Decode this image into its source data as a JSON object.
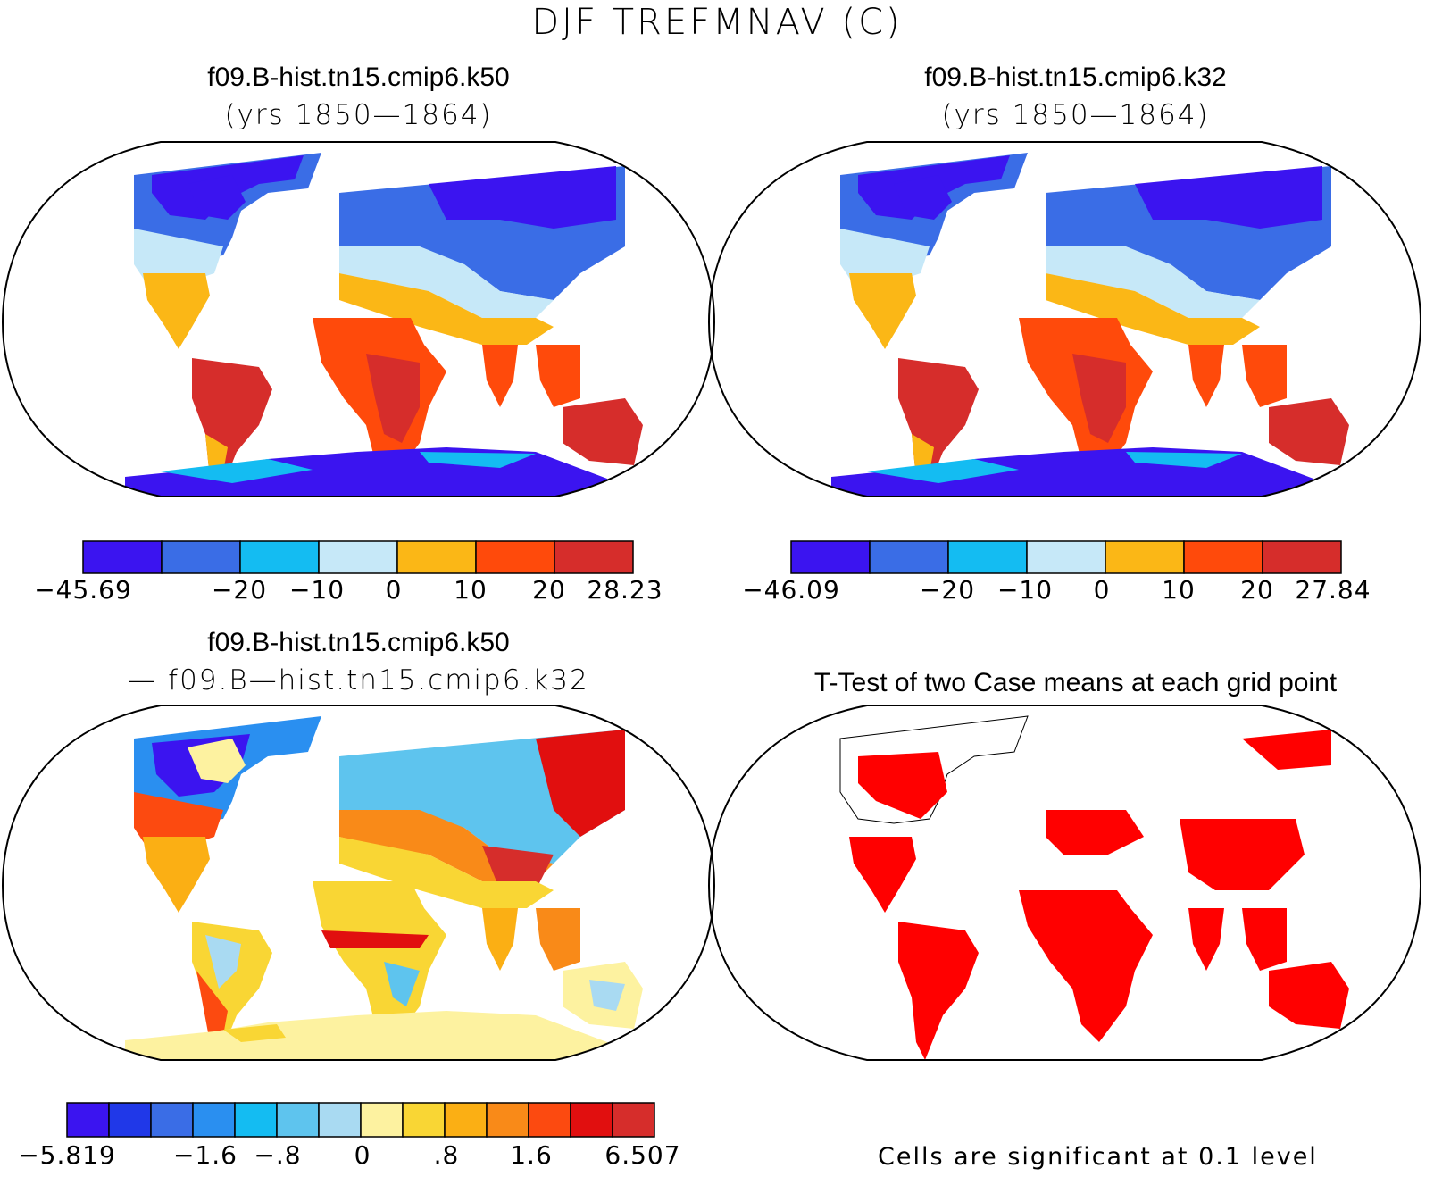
{
  "title": "DJF TREFMNAV (C)",
  "panels": {
    "top_left": {
      "title": "f09.B-hist.tn15.cmip6.k50",
      "subtitle": "(yrs 1850—1864)",
      "colorbar": {
        "colors": [
          "#3b14f0",
          "#3a6de6",
          "#14bcf2",
          "#c6e8f8",
          "#fbb716",
          "#ff4a0b",
          "#d62d2b"
        ],
        "labels": [
          "−45.69",
          "−20",
          "−10",
          "0",
          "10",
          "20",
          "28.23"
        ]
      }
    },
    "top_right": {
      "title": "f09.B-hist.tn15.cmip6.k32",
      "subtitle": "(yrs 1850—1864)",
      "colorbar": {
        "colors": [
          "#3b14f0",
          "#3a6de6",
          "#14bcf2",
          "#c6e8f8",
          "#fbb716",
          "#ff4a0b",
          "#d62d2b"
        ],
        "labels": [
          "−46.09",
          "−20",
          "−10",
          "0",
          "10",
          "20",
          "27.84"
        ]
      }
    },
    "bottom_left": {
      "title": "f09.B-hist.tn15.cmip6.k50",
      "subtitle": "— f09.B—hist.tn15.cmip6.k32",
      "colorbar": {
        "colors": [
          "#3b14f0",
          "#2038e8",
          "#3a6de6",
          "#2a8ff0",
          "#14bcf2",
          "#5ec4ee",
          "#a9daf2",
          "#fdf2a0",
          "#f9d634",
          "#fbaf14",
          "#f98a18",
          "#fc4a10",
          "#e10f0f",
          "#d62d2b"
        ],
        "labels": [
          "−5.819",
          "−1.6",
          "−.8",
          "0",
          ".8",
          "1.6",
          "6.507"
        ]
      }
    },
    "bottom_right": {
      "title": "T-Test of two Case means at each grid point",
      "note": "Cells are significant at 0.1 level",
      "significant_color": "#ff0000"
    }
  }
}
